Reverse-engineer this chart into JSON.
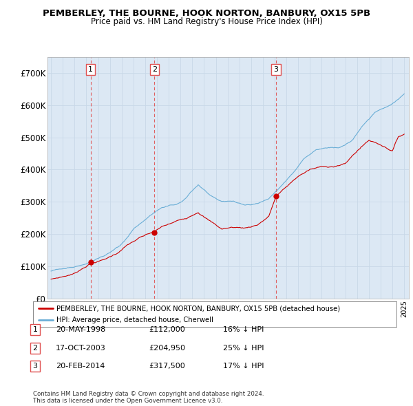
{
  "title": "PEMBERLEY, THE BOURNE, HOOK NORTON, BANBURY, OX15 5PB",
  "subtitle": "Price paid vs. HM Land Registry's House Price Index (HPI)",
  "ylim": [
    0,
    750000
  ],
  "yticks": [
    0,
    100000,
    200000,
    300000,
    400000,
    500000,
    600000,
    700000
  ],
  "ytick_labels": [
    "£0",
    "£100K",
    "£200K",
    "£300K",
    "£400K",
    "£500K",
    "£600K",
    "£700K"
  ],
  "sale_prices": [
    112000,
    204950,
    317500
  ],
  "sale_labels": [
    "1",
    "2",
    "3"
  ],
  "sale_hpi_pct": [
    "16% ↓ HPI",
    "25% ↓ HPI",
    "17% ↓ HPI"
  ],
  "sale_date_labels": [
    "20-MAY-1998",
    "17-OCT-2003",
    "20-FEB-2014"
  ],
  "sale_price_labels": [
    "£112,000",
    "£204,950",
    "£317,500"
  ],
  "sale_year_floats": [
    1998.37,
    2003.79,
    2014.12
  ],
  "red_line_color": "#cc0000",
  "blue_line_color": "#6aaed6",
  "vline_color": "#e05050",
  "grid_color": "#c8d8e8",
  "chart_bg_color": "#dce8f4",
  "background_color": "#ffffff",
  "legend_label_red": "PEMBERLEY, THE BOURNE, HOOK NORTON, BANBURY, OX15 5PB (detached house)",
  "legend_label_blue": "HPI: Average price, detached house, Cherwell",
  "footnote": "Contains HM Land Registry data © Crown copyright and database right 2024.\nThis data is licensed under the Open Government Licence v3.0."
}
